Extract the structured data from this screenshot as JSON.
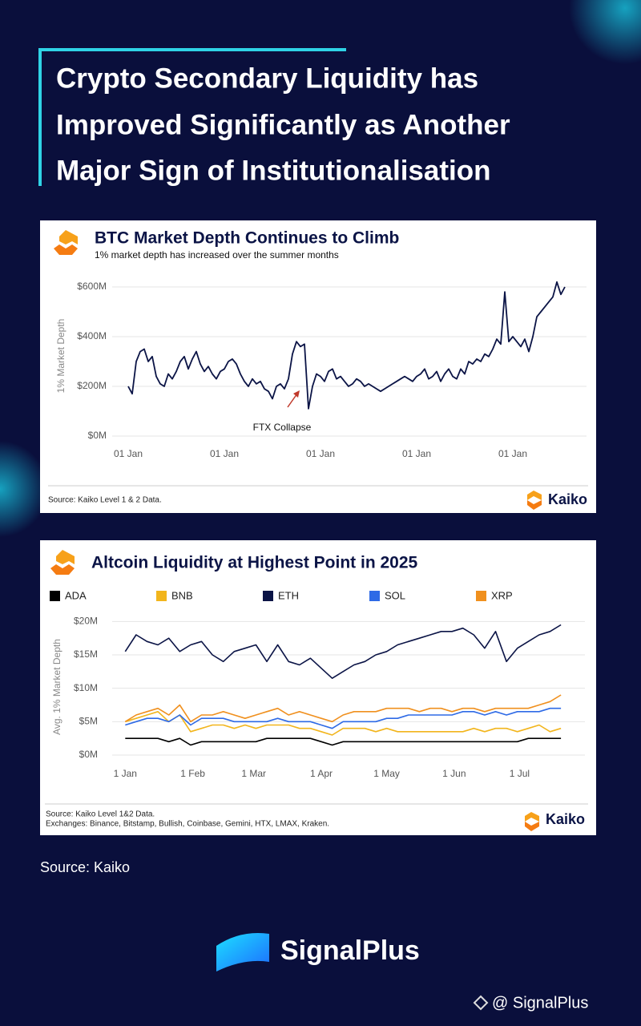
{
  "header": {
    "title_lines": [
      "Crypto Secondary Liquidity has",
      "Improved Significantly as Another",
      "Major Sign of Institutionalisation"
    ]
  },
  "chart_data": [
    {
      "type": "line",
      "title": "BTC Market Depth Continues to Climb",
      "subtitle": "1% market depth has increased over the summer months",
      "y_label": "1% Market Depth",
      "annotation": "FTX Collapse",
      "source": "Source: Kaiko Level 1 & 2 Data.",
      "logo": "Kaiko",
      "color": "#0b1446",
      "grid": true,
      "categories": [
        "01 Jan",
        null,
        null,
        null,
        null,
        null,
        null,
        null,
        null,
        null,
        null,
        null,
        null,
        null,
        null,
        null,
        null,
        null,
        null,
        null,
        null,
        null,
        null,
        null,
        "01 Jan",
        null,
        null,
        null,
        null,
        null,
        null,
        null,
        null,
        null,
        null,
        null,
        null,
        null,
        null,
        null,
        null,
        null,
        null,
        null,
        null,
        null,
        null,
        null,
        "01 Jan",
        null,
        null,
        null,
        null,
        null,
        null,
        null,
        null,
        null,
        null,
        null,
        null,
        null,
        null,
        null,
        null,
        null,
        null,
        null,
        null,
        null,
        null,
        null,
        "01 Jan",
        null,
        null,
        null,
        null,
        null,
        null,
        null,
        null,
        null,
        null,
        null,
        null,
        null,
        null,
        null,
        null,
        null,
        null,
        null,
        null,
        null,
        null,
        null,
        "01 Jan",
        null,
        null,
        null,
        null,
        null,
        null,
        null,
        null,
        null,
        null,
        null,
        null,
        null
      ],
      "values": [
        200,
        170,
        300,
        340,
        350,
        300,
        320,
        240,
        210,
        200,
        250,
        230,
        260,
        300,
        320,
        270,
        310,
        340,
        290,
        260,
        280,
        250,
        230,
        260,
        270,
        300,
        310,
        290,
        250,
        220,
        200,
        230,
        210,
        220,
        190,
        180,
        150,
        200,
        210,
        190,
        230,
        330,
        380,
        360,
        370,
        110,
        200,
        250,
        240,
        220,
        260,
        270,
        230,
        240,
        220,
        200,
        210,
        230,
        220,
        200,
        210,
        200,
        190,
        180,
        190,
        200,
        210,
        220,
        230,
        240,
        230,
        220,
        240,
        250,
        270,
        230,
        240,
        260,
        220,
        250,
        270,
        240,
        230,
        270,
        250,
        300,
        290,
        310,
        300,
        330,
        320,
        350,
        390,
        370,
        580,
        380,
        400,
        380,
        360,
        390,
        340,
        400,
        480,
        500,
        520,
        540,
        560,
        620,
        570,
        600
      ],
      "ylim": [
        0,
        650
      ],
      "yticks": [
        {
          "value": 0,
          "label": "$0M"
        },
        {
          "value": 200,
          "label": "$200M"
        },
        {
          "value": 400,
          "label": "$400M"
        },
        {
          "value": 600,
          "label": "$600M"
        }
      ]
    },
    {
      "type": "line",
      "title": "Altcoin Liquidity at Highest Point in 2025",
      "y_label": "Avg. 1% Market Depth",
      "source_lines": [
        "Source: Kaiko Level 1&2 Data.",
        "Exchanges: Binance, Bitstamp, Bullish, Coinbase, Gemini, HTX, LMAX, Kraken."
      ],
      "logo": "Kaiko",
      "grid": true,
      "x": [
        0,
        5,
        10,
        15,
        20,
        25,
        30,
        35,
        40,
        45,
        50,
        55,
        60,
        65,
        70,
        75,
        80,
        85,
        90,
        95,
        100,
        105,
        110,
        115,
        120,
        125,
        130,
        135,
        140,
        145,
        150,
        155,
        160,
        165,
        170,
        175,
        180,
        185,
        190,
        195,
        200
      ],
      "xlim": [
        -6,
        211
      ],
      "xticks": [
        {
          "value": 0,
          "label": "1 Jan"
        },
        {
          "value": 31,
          "label": "1 Feb"
        },
        {
          "value": 59,
          "label": "1 Mar"
        },
        {
          "value": 90,
          "label": "1 Apr"
        },
        {
          "value": 120,
          "label": "1 May"
        },
        {
          "value": 151,
          "label": "1 Jun"
        },
        {
          "value": 181,
          "label": "1 Jul"
        }
      ],
      "ylim": [
        0,
        21
      ],
      "yticks": [
        {
          "value": 0,
          "label": "$0M"
        },
        {
          "value": 5,
          "label": "$5M"
        },
        {
          "value": 10,
          "label": "$10M"
        },
        {
          "value": 15,
          "label": "$15M"
        },
        {
          "value": 20,
          "label": "$20M"
        }
      ],
      "series": [
        {
          "name": "ADA",
          "color": "#000000",
          "values": [
            2.5,
            2.5,
            2.5,
            2.5,
            2,
            2.5,
            1.5,
            2,
            2,
            2,
            2,
            2,
            2,
            2.5,
            2.5,
            2.5,
            2.5,
            2.5,
            2,
            1.5,
            2,
            2,
            2,
            2,
            2,
            2,
            2,
            2,
            2,
            2,
            2,
            2,
            2,
            2,
            2,
            2,
            2,
            2.5,
            2.5,
            2.5,
            2.5
          ]
        },
        {
          "name": "BNB",
          "color": "#f2b51c",
          "values": [
            5,
            5.5,
            6,
            6.5,
            5,
            6,
            3.5,
            4,
            4.5,
            4.5,
            4,
            4.5,
            4,
            4.5,
            4.5,
            4.5,
            4,
            4,
            3.5,
            3,
            4,
            4,
            4,
            3.5,
            4,
            3.5,
            3.5,
            3.5,
            3.5,
            3.5,
            3.5,
            3.5,
            4,
            3.5,
            4,
            4,
            3.5,
            4,
            4.5,
            3.5,
            4
          ]
        },
        {
          "name": "ETH",
          "color": "#0b1446",
          "values": [
            15.5,
            18,
            17,
            16.5,
            17.5,
            15.5,
            16.5,
            17,
            15,
            14,
            15.5,
            16,
            16.5,
            14,
            16.5,
            14,
            13.5,
            14.5,
            13,
            11.5,
            12.5,
            13.5,
            14,
            15,
            15.5,
            16.5,
            17,
            17.5,
            18,
            18.5,
            18.5,
            19,
            18,
            16,
            18.5,
            14,
            16,
            17,
            18,
            18.5,
            19.5
          ]
        },
        {
          "name": "SOL",
          "color": "#2e6ae6",
          "values": [
            4.5,
            5,
            5.5,
            5.5,
            5,
            6,
            4.5,
            5.5,
            5.5,
            5.5,
            5,
            5,
            5,
            5,
            5.5,
            5,
            5,
            5,
            4.5,
            4,
            5,
            5,
            5,
            5,
            5.5,
            5.5,
            6,
            6,
            6,
            6,
            6,
            6.5,
            6.5,
            6,
            6.5,
            6,
            6.5,
            6.5,
            6.5,
            7,
            7
          ]
        },
        {
          "name": "XRP",
          "color": "#f0901e",
          "values": [
            5,
            6,
            6.5,
            7,
            6,
            7.5,
            5,
            6,
            6,
            6.5,
            6,
            5.5,
            6,
            6.5,
            7,
            6,
            6.5,
            6,
            5.5,
            5,
            6,
            6.5,
            6.5,
            6.5,
            7,
            7,
            7,
            6.5,
            7,
            7,
            6.5,
            7,
            7,
            6.5,
            7,
            7,
            7,
            7,
            7.5,
            8,
            9
          ]
        }
      ]
    }
  ],
  "footer": {
    "source": "Source: Kaiko",
    "brand": "SignalPlus",
    "handle": "@ SignalPlus"
  }
}
